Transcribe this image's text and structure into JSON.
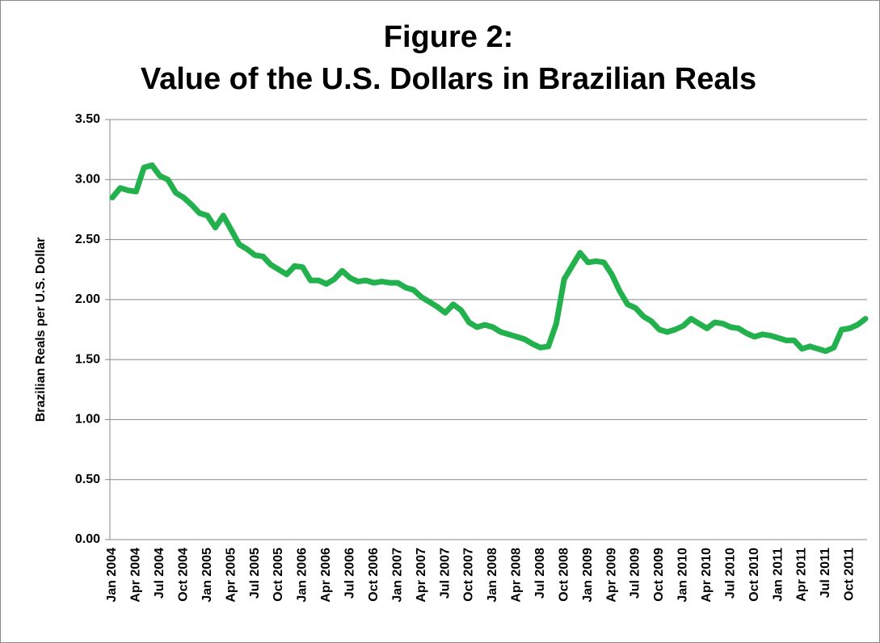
{
  "chart_data": {
    "type": "line",
    "title_lines": [
      "Figure 2:",
      "Value of the U.S. Dollars in Brazilian Reals"
    ],
    "y_label": "Brazilian Reals per U.S. Dollar",
    "categories": [
      "Jan 2004",
      null,
      null,
      "Apr 2004",
      null,
      null,
      "Jul 2004",
      null,
      null,
      "Oct 2004",
      null,
      null,
      "Jan 2005",
      null,
      null,
      "Apr 2005",
      null,
      null,
      "Jul 2005",
      null,
      null,
      "Oct 2005",
      null,
      null,
      "Jan 2006",
      null,
      null,
      "Apr 2006",
      null,
      null,
      "Jul 2006",
      null,
      null,
      "Oct 2006",
      null,
      null,
      "Jan 2007",
      null,
      null,
      "Apr 2007",
      null,
      null,
      "Jul 2007",
      null,
      null,
      "Oct 2007",
      null,
      null,
      "Jan 2008",
      null,
      null,
      "Apr 2008",
      null,
      null,
      "Jul 2008",
      null,
      null,
      "Oct 2008",
      null,
      null,
      "Jan 2009",
      null,
      null,
      "Apr 2009",
      null,
      null,
      "Jul 2009",
      null,
      null,
      "Oct 2009",
      null,
      null,
      "Jan 2010",
      null,
      null,
      "Apr 2010",
      null,
      null,
      "Jul 2010",
      null,
      null,
      "Oct 2010",
      null,
      null,
      "Jan 2011",
      null,
      null,
      "Apr 2011",
      null,
      null,
      "Jul 2011",
      null,
      null,
      "Oct 2011",
      null,
      null
    ],
    "series": [
      {
        "color": "#22b14c",
        "values": [
          2.85,
          2.93,
          2.91,
          2.9,
          3.1,
          3.12,
          3.03,
          3.0,
          2.89,
          2.85,
          2.79,
          2.72,
          2.7,
          2.6,
          2.7,
          2.58,
          2.46,
          2.42,
          2.37,
          2.36,
          2.29,
          2.25,
          2.21,
          2.28,
          2.27,
          2.16,
          2.16,
          2.13,
          2.17,
          2.24,
          2.18,
          2.15,
          2.16,
          2.14,
          2.15,
          2.14,
          2.14,
          2.1,
          2.08,
          2.02,
          1.98,
          1.94,
          1.89,
          1.96,
          1.91,
          1.81,
          1.77,
          1.79,
          1.77,
          1.73,
          1.71,
          1.69,
          1.67,
          1.63,
          1.6,
          1.61,
          1.8,
          2.17,
          2.28,
          2.39,
          2.31,
          2.32,
          2.31,
          2.21,
          2.07,
          1.96,
          1.93,
          1.86,
          1.82,
          1.75,
          1.73,
          1.75,
          1.78,
          1.84,
          1.8,
          1.76,
          1.81,
          1.8,
          1.77,
          1.76,
          1.72,
          1.69,
          1.71,
          1.7,
          1.68,
          1.66,
          1.66,
          1.59,
          1.61,
          1.59,
          1.57,
          1.6,
          1.75,
          1.76,
          1.79,
          1.84
        ]
      }
    ],
    "ylim": [
      0,
      3.5
    ],
    "yticks": [
      {
        "value": 0,
        "label": "0.00"
      },
      {
        "value": 0.5,
        "label": "0.50"
      },
      {
        "value": 1,
        "label": "1.00"
      },
      {
        "value": 1.5,
        "label": "1.50"
      },
      {
        "value": 2,
        "label": "2.00"
      },
      {
        "value": 2.5,
        "label": "2.50"
      },
      {
        "value": 3,
        "label": "3.00"
      },
      {
        "value": 3.5,
        "label": "3.50"
      }
    ],
    "grid": true
  }
}
